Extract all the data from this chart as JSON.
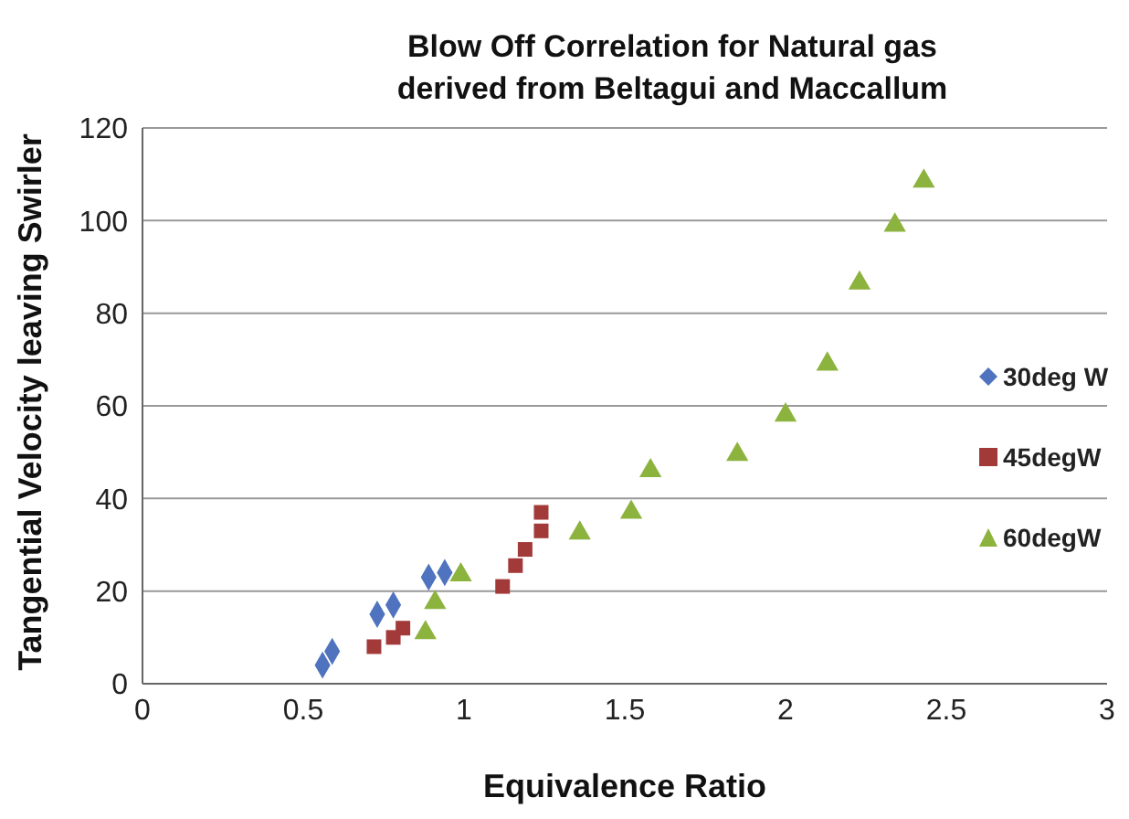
{
  "chart_data": {
    "type": "scatter",
    "title": "Blow Off Correlation for Natural gas derived from Beltagui and Maccallum",
    "xlabel": "Equivalence Ratio",
    "ylabel": "Tangential Velocity leaving Swirler",
    "xlim": [
      0,
      3
    ],
    "xticks": [
      0,
      0.5,
      1,
      1.5,
      2,
      2.5,
      3
    ],
    "ylim": [
      0,
      120
    ],
    "yticks": [
      0,
      20,
      40,
      60,
      80,
      100,
      120
    ],
    "grid": "y",
    "legend": "right",
    "series": [
      {
        "name": "30deg W",
        "color": "#4f73be",
        "marker": "diamond",
        "x": [
          0.56,
          0.59,
          0.73,
          0.78,
          0.89,
          0.94
        ],
        "values": [
          4,
          7,
          15,
          17,
          23,
          24
        ]
      },
      {
        "name": "45degW",
        "color": "#a33a3a",
        "marker": "square",
        "x": [
          0.72,
          0.78,
          0.81,
          1.12,
          1.16,
          1.19,
          1.24,
          1.24
        ],
        "values": [
          8,
          10,
          12,
          21,
          25.5,
          29,
          33,
          37
        ]
      },
      {
        "name": "60degW",
        "color": "#8db33f",
        "marker": "triangle",
        "x": [
          0.88,
          0.91,
          0.99,
          1.36,
          1.52,
          1.58,
          1.85,
          2.0,
          2.13,
          2.23,
          2.34,
          2.43
        ],
        "values": [
          11,
          17.5,
          23.5,
          32.5,
          37,
          46,
          49.5,
          58,
          69,
          86.5,
          99,
          108.5
        ]
      }
    ]
  }
}
